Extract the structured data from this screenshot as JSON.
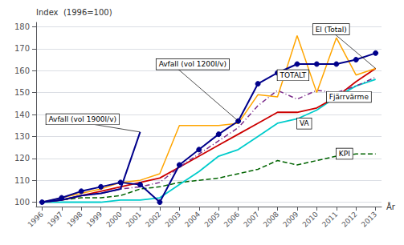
{
  "chart_data": {
    "type": "line",
    "ylabel": "Index  (1996=100)",
    "xlabel": "År",
    "x": [
      1996,
      1997,
      1998,
      1999,
      2000,
      2001,
      2002,
      2003,
      2004,
      2005,
      2006,
      2007,
      2008,
      2009,
      2010,
      2011,
      2012,
      2013
    ],
    "xlim": [
      1995.7,
      2013.3
    ],
    "xticks": [
      1996,
      1997,
      1998,
      1999,
      2000,
      2001,
      2002,
      2003,
      2004,
      2005,
      2006,
      2007,
      2008,
      2009,
      2010,
      2011,
      2012,
      2013
    ],
    "ylim": [
      98,
      182
    ],
    "yticks": [
      100,
      110,
      120,
      130,
      140,
      150,
      160,
      170,
      180
    ],
    "grid": true,
    "legend": false,
    "series": [
      {
        "name": "KPI",
        "color": "#006400",
        "line_style": "dashed",
        "values": [
          100,
          101,
          102,
          102,
          103,
          106,
          107,
          109,
          110,
          111,
          113,
          115,
          119,
          117,
          119,
          121,
          122,
          122
        ]
      },
      {
        "name": "Fjärrvärme",
        "color": "#00CCCC",
        "line_style": "solid",
        "values": [
          100,
          100,
          100,
          100,
          101,
          101,
          102,
          108,
          114,
          121,
          124,
          130,
          136,
          138,
          142,
          148,
          153,
          156
        ]
      },
      {
        "name": "VA",
        "color": "#CC0000",
        "line_style": "solid",
        "values": [
          100,
          101,
          103,
          105,
          107,
          109,
          111,
          116,
          121,
          126,
          131,
          136,
          141,
          141,
          143,
          148,
          155,
          161
        ]
      },
      {
        "name": "TOTALT",
        "color": "#7B2D8B",
        "line_style": "dashdot",
        "values": [
          100,
          101,
          103,
          104,
          106,
          107,
          109,
          116,
          122,
          128,
          134,
          144,
          151,
          147,
          151,
          150,
          153,
          157
        ]
      },
      {
        "name": "El (Total)",
        "color": "#FFA500",
        "line_style": "solid",
        "values": [
          100,
          102,
          104,
          106,
          109,
          110,
          113,
          135,
          135,
          135,
          136,
          149,
          148,
          176,
          150,
          175,
          158,
          161
        ]
      },
      {
        "name": "Avfall (vol 1900l/v)",
        "color": "#00008B",
        "line_style": "solid",
        "values": [
          100,
          101,
          103,
          104,
          106,
          132,
          null,
          null,
          null,
          null,
          null,
          null,
          null,
          null,
          null,
          null,
          null,
          null
        ]
      },
      {
        "name": "Avfall (vol 1200l/v)",
        "color": "#00008B",
        "line_style": "solid",
        "marker": "circle",
        "values": [
          100,
          102,
          105,
          107,
          109,
          108,
          100,
          117,
          124,
          131,
          137,
          154,
          159,
          163,
          163,
          163,
          165,
          168
        ]
      }
    ]
  }
}
